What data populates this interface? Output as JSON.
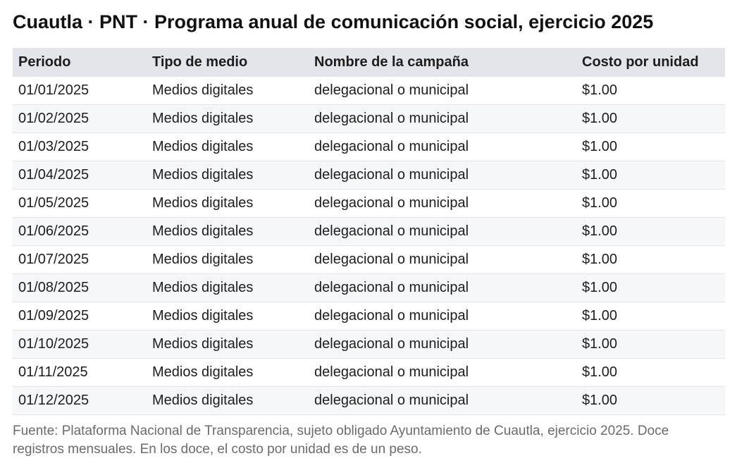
{
  "title": "Cuautla · PNT · Programa anual de comunicación social, ejercicio 2025",
  "table": {
    "headers": [
      "Periodo",
      "Tipo de medio",
      "Nombre de la campaña",
      "Costo por unidad"
    ],
    "rows": [
      [
        "01/01/2025",
        "Medios digitales",
        "delegacional o municipal",
        "$1.00"
      ],
      [
        "01/02/2025",
        "Medios digitales",
        "delegacional o municipal",
        "$1.00"
      ],
      [
        "01/03/2025",
        "Medios digitales",
        "delegacional o municipal",
        "$1.00"
      ],
      [
        "01/04/2025",
        "Medios digitales",
        "delegacional o municipal",
        "$1.00"
      ],
      [
        "01/05/2025",
        "Medios digitales",
        "delegacional o municipal",
        "$1.00"
      ],
      [
        "01/06/2025",
        "Medios digitales",
        "delegacional o municipal",
        "$1.00"
      ],
      [
        "01/07/2025",
        "Medios digitales",
        "delegacional o municipal",
        "$1.00"
      ],
      [
        "01/08/2025",
        "Medios digitales",
        "delegacional o municipal",
        "$1.00"
      ],
      [
        "01/09/2025",
        "Medios digitales",
        "delegacional o municipal",
        "$1.00"
      ],
      [
        "01/10/2025",
        "Medios digitales",
        "delegacional o municipal",
        "$1.00"
      ],
      [
        "01/11/2025",
        "Medios digitales",
        "delegacional o municipal",
        "$1.00"
      ],
      [
        "01/12/2025",
        "Medios digitales",
        "delegacional o municipal",
        "$1.00"
      ]
    ]
  },
  "source_note": "Fuente: Plataforma Nacional de Transparencia, sujeto obligado Ayuntamiento de Cuautla, ejercicio 2025. Doce registros mensuales. En los doce, el costo por unidad es de un peso."
}
